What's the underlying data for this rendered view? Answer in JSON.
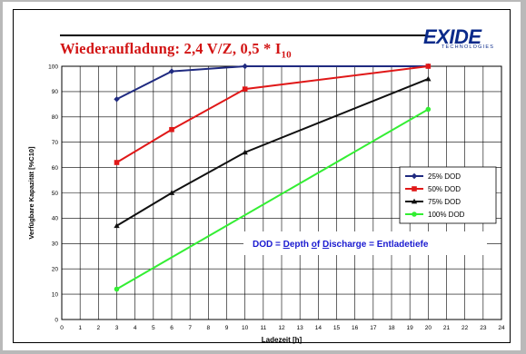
{
  "header": {
    "title_main": "Wiederaufladung: 2,4 V/Z, 0,5 * I",
    "title_subscript": "10",
    "logo_text": "EXIDE",
    "logo_subtext": "TECHNOLOGIES"
  },
  "colors": {
    "title": "#d21414",
    "logo": "#0a2a8a",
    "dod_note": "#1a1ad0"
  },
  "dod_note": {
    "parts": [
      {
        "text": "DOD = ",
        "underline": false
      },
      {
        "text": "D",
        "underline": true
      },
      {
        "text": "epth ",
        "underline": false
      },
      {
        "text": "o",
        "underline": true
      },
      {
        "text": "f ",
        "underline": false
      },
      {
        "text": "D",
        "underline": true
      },
      {
        "text": "ischarge = Entladetiefe",
        "underline": false
      }
    ]
  },
  "chart_data": {
    "type": "line",
    "xlabel": "Ladezeit [h]",
    "ylabel": "Verfügbare Kapazität [%C10]",
    "xlim": [
      0,
      24
    ],
    "ylim": [
      0,
      100
    ],
    "x_ticks": [
      0,
      1,
      2,
      3,
      4,
      5,
      6,
      7,
      8,
      9,
      10,
      11,
      12,
      13,
      14,
      15,
      16,
      17,
      18,
      19,
      20,
      21,
      22,
      23,
      24
    ],
    "y_ticks": [
      0,
      10,
      20,
      30,
      40,
      50,
      60,
      70,
      80,
      90,
      100
    ],
    "grid": true,
    "legend_position": "right",
    "series": [
      {
        "name": "25% DOD",
        "color": "#1f2a80",
        "marker": "diamond",
        "x": [
          3,
          6,
          10,
          20
        ],
        "y": [
          87,
          98,
          100,
          100
        ]
      },
      {
        "name": "50% DOD",
        "color": "#e01818",
        "marker": "square",
        "x": [
          3,
          6,
          10,
          20
        ],
        "y": [
          62,
          75,
          91,
          100
        ]
      },
      {
        "name": "75% DOD",
        "color": "#101010",
        "marker": "triangle",
        "x": [
          3,
          6,
          10,
          20
        ],
        "y": [
          37,
          50,
          66,
          95
        ]
      },
      {
        "name": "100% DOD",
        "color": "#33ee33",
        "marker": "circle",
        "x": [
          3,
          20
        ],
        "y": [
          12,
          83
        ]
      }
    ]
  }
}
